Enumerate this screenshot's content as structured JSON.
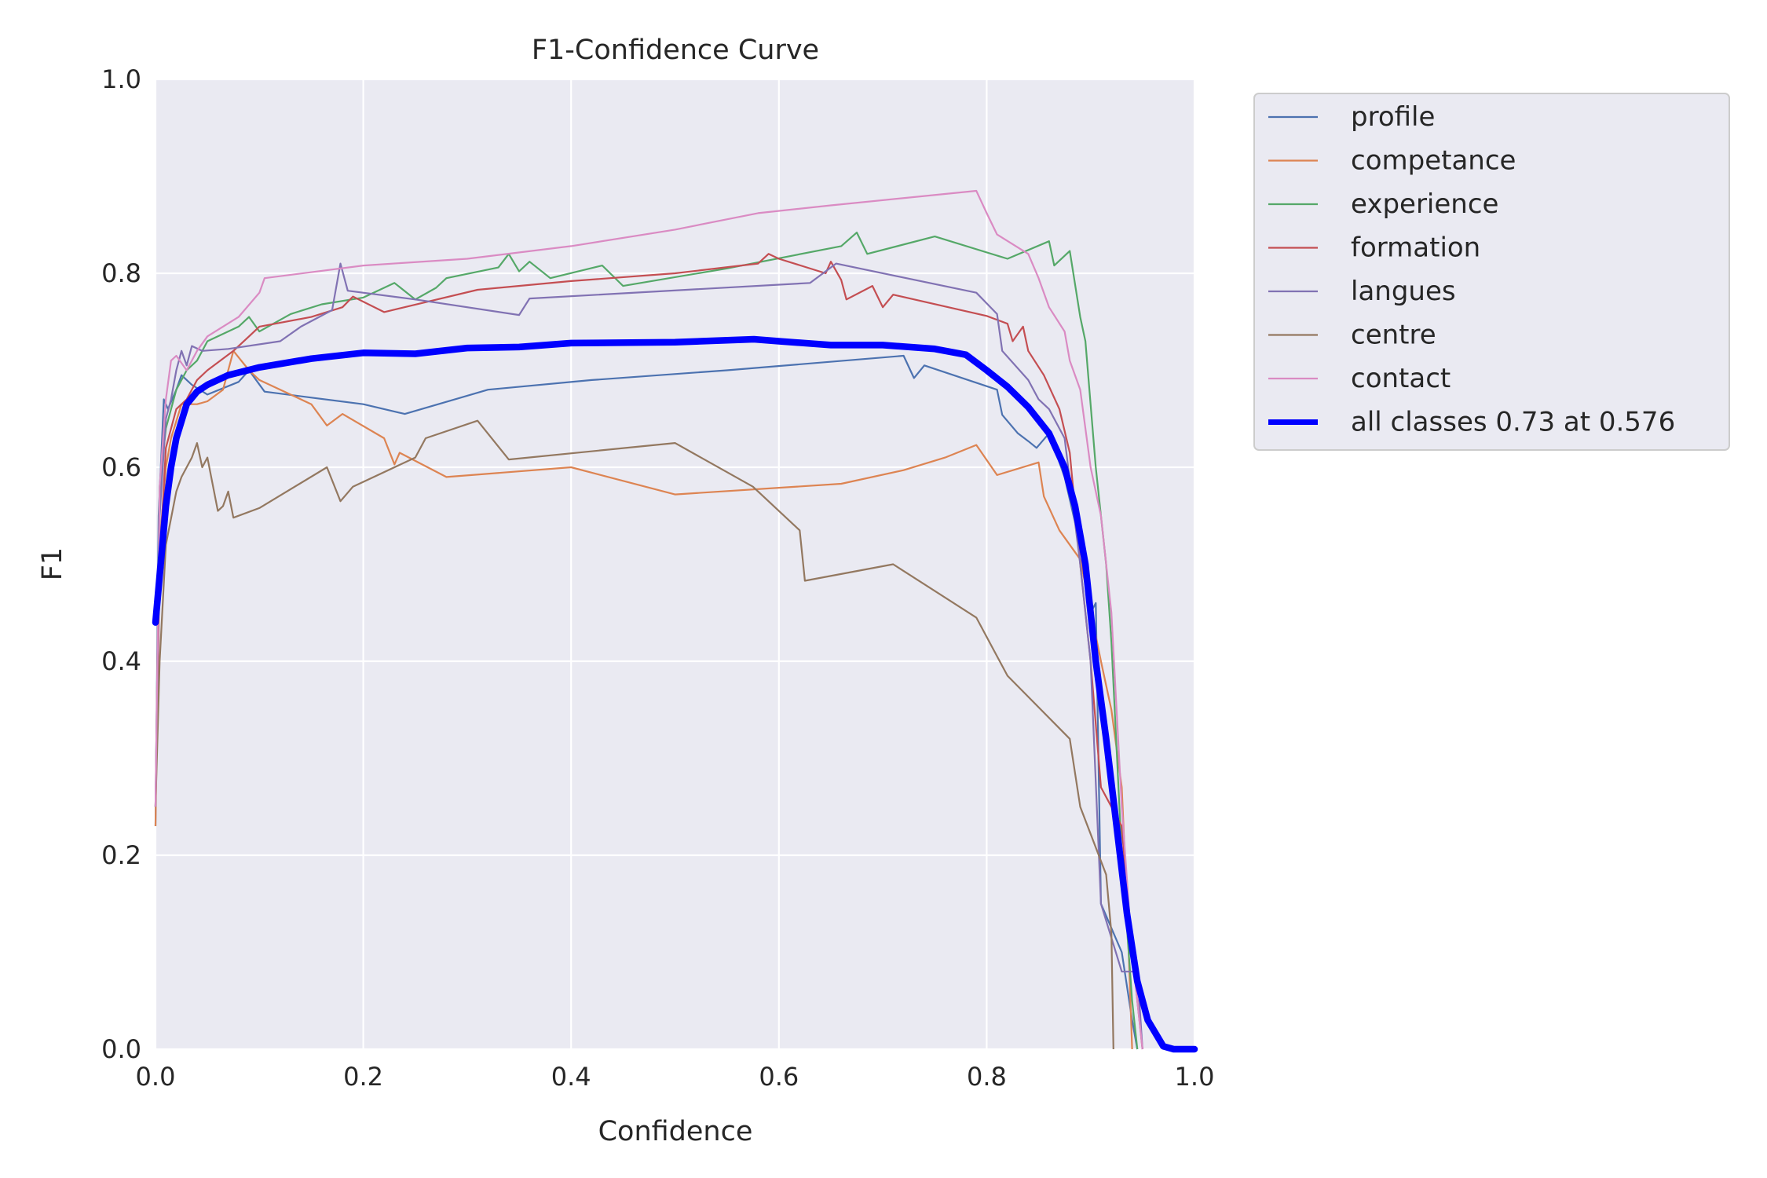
{
  "chart_data": {
    "type": "line",
    "title": "F1-Confidence Curve",
    "xlabel": "Confidence",
    "ylabel": "F1",
    "xlim": [
      0,
      1
    ],
    "ylim": [
      0,
      1
    ],
    "xticks": [
      "0.0",
      "0.2",
      "0.4",
      "0.6",
      "0.8",
      "1.0"
    ],
    "yticks": [
      "0.0",
      "0.2",
      "0.4",
      "0.6",
      "0.8",
      "1.0"
    ],
    "grid": true,
    "legend_position": "outside-upper-right",
    "background": "#eaeaf2",
    "series": [
      {
        "name": "profile",
        "color": "#4c72b0",
        "points": [
          [
            0,
            0.23
          ],
          [
            0.003,
            0.55
          ],
          [
            0.008,
            0.67
          ],
          [
            0.012,
            0.66
          ],
          [
            0.02,
            0.68
          ],
          [
            0.025,
            0.695
          ],
          [
            0.035,
            0.685
          ],
          [
            0.05,
            0.675
          ],
          [
            0.08,
            0.688
          ],
          [
            0.09,
            0.7
          ],
          [
            0.105,
            0.678
          ],
          [
            0.2,
            0.665
          ],
          [
            0.24,
            0.655
          ],
          [
            0.32,
            0.68
          ],
          [
            0.42,
            0.69
          ],
          [
            0.55,
            0.7
          ],
          [
            0.72,
            0.715
          ],
          [
            0.73,
            0.692
          ],
          [
            0.74,
            0.705
          ],
          [
            0.81,
            0.68
          ],
          [
            0.815,
            0.654
          ],
          [
            0.83,
            0.635
          ],
          [
            0.84,
            0.627
          ],
          [
            0.848,
            0.62
          ],
          [
            0.86,
            0.635
          ],
          [
            0.875,
            0.59
          ],
          [
            0.89,
            0.52
          ],
          [
            0.9,
            0.45
          ],
          [
            0.905,
            0.46
          ],
          [
            0.91,
            0.15
          ],
          [
            0.93,
            0.1
          ],
          [
            0.94,
            0.03
          ],
          [
            0.945,
            0
          ]
        ]
      },
      {
        "name": "competance",
        "color": "#dd8452",
        "points": [
          [
            0,
            0.23
          ],
          [
            0.004,
            0.52
          ],
          [
            0.01,
            0.6
          ],
          [
            0.015,
            0.63
          ],
          [
            0.025,
            0.665
          ],
          [
            0.04,
            0.665
          ],
          [
            0.05,
            0.668
          ],
          [
            0.065,
            0.68
          ],
          [
            0.075,
            0.72
          ],
          [
            0.09,
            0.7
          ],
          [
            0.1,
            0.69
          ],
          [
            0.15,
            0.665
          ],
          [
            0.165,
            0.643
          ],
          [
            0.18,
            0.655
          ],
          [
            0.22,
            0.63
          ],
          [
            0.23,
            0.603
          ],
          [
            0.235,
            0.615
          ],
          [
            0.28,
            0.59
          ],
          [
            0.4,
            0.6
          ],
          [
            0.5,
            0.572
          ],
          [
            0.66,
            0.583
          ],
          [
            0.72,
            0.597
          ],
          [
            0.76,
            0.61
          ],
          [
            0.79,
            0.623
          ],
          [
            0.81,
            0.592
          ],
          [
            0.85,
            0.605
          ],
          [
            0.855,
            0.57
          ],
          [
            0.87,
            0.535
          ],
          [
            0.89,
            0.505
          ],
          [
            0.91,
            0.4
          ],
          [
            0.92,
            0.35
          ],
          [
            0.93,
            0.27
          ],
          [
            0.935,
            0.15
          ],
          [
            0.94,
            0
          ]
        ]
      },
      {
        "name": "experience",
        "color": "#55a868",
        "points": [
          [
            0,
            0.25
          ],
          [
            0.004,
            0.58
          ],
          [
            0.01,
            0.64
          ],
          [
            0.02,
            0.68
          ],
          [
            0.03,
            0.7
          ],
          [
            0.04,
            0.71
          ],
          [
            0.05,
            0.73
          ],
          [
            0.08,
            0.745
          ],
          [
            0.09,
            0.755
          ],
          [
            0.1,
            0.74
          ],
          [
            0.13,
            0.758
          ],
          [
            0.16,
            0.768
          ],
          [
            0.2,
            0.775
          ],
          [
            0.23,
            0.79
          ],
          [
            0.25,
            0.773
          ],
          [
            0.27,
            0.785
          ],
          [
            0.28,
            0.795
          ],
          [
            0.33,
            0.806
          ],
          [
            0.34,
            0.82
          ],
          [
            0.35,
            0.802
          ],
          [
            0.36,
            0.812
          ],
          [
            0.38,
            0.795
          ],
          [
            0.43,
            0.808
          ],
          [
            0.45,
            0.787
          ],
          [
            0.55,
            0.805
          ],
          [
            0.66,
            0.828
          ],
          [
            0.675,
            0.842
          ],
          [
            0.685,
            0.82
          ],
          [
            0.75,
            0.838
          ],
          [
            0.82,
            0.815
          ],
          [
            0.86,
            0.833
          ],
          [
            0.865,
            0.808
          ],
          [
            0.88,
            0.823
          ],
          [
            0.89,
            0.755
          ],
          [
            0.895,
            0.73
          ],
          [
            0.905,
            0.6
          ],
          [
            0.915,
            0.5
          ],
          [
            0.92,
            0.42
          ],
          [
            0.93,
            0.2
          ],
          [
            0.94,
            0.05
          ],
          [
            0.945,
            0
          ]
        ]
      },
      {
        "name": "formation",
        "color": "#c44e52",
        "points": [
          [
            0,
            0.25
          ],
          [
            0.004,
            0.5
          ],
          [
            0.01,
            0.62
          ],
          [
            0.02,
            0.66
          ],
          [
            0.03,
            0.67
          ],
          [
            0.04,
            0.69
          ],
          [
            0.05,
            0.7
          ],
          [
            0.075,
            0.72
          ],
          [
            0.09,
            0.735
          ],
          [
            0.1,
            0.745
          ],
          [
            0.15,
            0.755
          ],
          [
            0.18,
            0.765
          ],
          [
            0.19,
            0.776
          ],
          [
            0.22,
            0.76
          ],
          [
            0.31,
            0.783
          ],
          [
            0.4,
            0.792
          ],
          [
            0.5,
            0.8
          ],
          [
            0.58,
            0.81
          ],
          [
            0.59,
            0.82
          ],
          [
            0.6,
            0.815
          ],
          [
            0.645,
            0.8
          ],
          [
            0.65,
            0.812
          ],
          [
            0.66,
            0.793
          ],
          [
            0.665,
            0.773
          ],
          [
            0.69,
            0.787
          ],
          [
            0.7,
            0.765
          ],
          [
            0.71,
            0.778
          ],
          [
            0.8,
            0.756
          ],
          [
            0.82,
            0.748
          ],
          [
            0.825,
            0.73
          ],
          [
            0.835,
            0.745
          ],
          [
            0.84,
            0.72
          ],
          [
            0.855,
            0.695
          ],
          [
            0.87,
            0.66
          ],
          [
            0.88,
            0.615
          ],
          [
            0.89,
            0.5
          ],
          [
            0.9,
            0.4
          ],
          [
            0.91,
            0.27
          ],
          [
            0.93,
            0.23
          ],
          [
            0.94,
            0.1
          ],
          [
            0.95,
            0
          ]
        ]
      },
      {
        "name": "langues",
        "color": "#8172b3",
        "points": [
          [
            0,
            0.25
          ],
          [
            0.004,
            0.55
          ],
          [
            0.01,
            0.65
          ],
          [
            0.015,
            0.67
          ],
          [
            0.02,
            0.7
          ],
          [
            0.025,
            0.72
          ],
          [
            0.03,
            0.705
          ],
          [
            0.035,
            0.725
          ],
          [
            0.045,
            0.72
          ],
          [
            0.07,
            0.722
          ],
          [
            0.12,
            0.73
          ],
          [
            0.14,
            0.745
          ],
          [
            0.17,
            0.762
          ],
          [
            0.178,
            0.81
          ],
          [
            0.185,
            0.782
          ],
          [
            0.25,
            0.773
          ],
          [
            0.35,
            0.757
          ],
          [
            0.36,
            0.774
          ],
          [
            0.63,
            0.79
          ],
          [
            0.655,
            0.81
          ],
          [
            0.79,
            0.78
          ],
          [
            0.81,
            0.758
          ],
          [
            0.815,
            0.72
          ],
          [
            0.84,
            0.69
          ],
          [
            0.85,
            0.67
          ],
          [
            0.86,
            0.66
          ],
          [
            0.875,
            0.63
          ],
          [
            0.89,
            0.5
          ],
          [
            0.9,
            0.4
          ],
          [
            0.91,
            0.15
          ],
          [
            0.93,
            0.08
          ],
          [
            0.945,
            0.08
          ],
          [
            0.95,
            0
          ]
        ]
      },
      {
        "name": "centre",
        "color": "#937860",
        "points": [
          [
            0,
            0.25
          ],
          [
            0.004,
            0.4
          ],
          [
            0.01,
            0.52
          ],
          [
            0.02,
            0.575
          ],
          [
            0.025,
            0.59
          ],
          [
            0.035,
            0.61
          ],
          [
            0.04,
            0.625
          ],
          [
            0.045,
            0.6
          ],
          [
            0.05,
            0.61
          ],
          [
            0.06,
            0.555
          ],
          [
            0.065,
            0.56
          ],
          [
            0.07,
            0.575
          ],
          [
            0.075,
            0.548
          ],
          [
            0.1,
            0.558
          ],
          [
            0.165,
            0.6
          ],
          [
            0.178,
            0.565
          ],
          [
            0.19,
            0.58
          ],
          [
            0.25,
            0.61
          ],
          [
            0.26,
            0.63
          ],
          [
            0.31,
            0.648
          ],
          [
            0.34,
            0.608
          ],
          [
            0.5,
            0.625
          ],
          [
            0.575,
            0.58
          ],
          [
            0.62,
            0.535
          ],
          [
            0.625,
            0.483
          ],
          [
            0.71,
            0.5
          ],
          [
            0.79,
            0.445
          ],
          [
            0.82,
            0.385
          ],
          [
            0.88,
            0.32
          ],
          [
            0.89,
            0.25
          ],
          [
            0.915,
            0.18
          ],
          [
            0.92,
            0.12
          ],
          [
            0.922,
            0
          ]
        ]
      },
      {
        "name": "contact",
        "color": "#da8bc3",
        "points": [
          [
            0,
            0.25
          ],
          [
            0.004,
            0.58
          ],
          [
            0.01,
            0.67
          ],
          [
            0.015,
            0.71
          ],
          [
            0.02,
            0.715
          ],
          [
            0.03,
            0.7
          ],
          [
            0.04,
            0.72
          ],
          [
            0.05,
            0.735
          ],
          [
            0.08,
            0.755
          ],
          [
            0.1,
            0.78
          ],
          [
            0.105,
            0.795
          ],
          [
            0.2,
            0.808
          ],
          [
            0.3,
            0.815
          ],
          [
            0.4,
            0.828
          ],
          [
            0.5,
            0.845
          ],
          [
            0.58,
            0.862
          ],
          [
            0.65,
            0.87
          ],
          [
            0.79,
            0.885
          ],
          [
            0.8,
            0.862
          ],
          [
            0.81,
            0.84
          ],
          [
            0.84,
            0.82
          ],
          [
            0.85,
            0.795
          ],
          [
            0.86,
            0.765
          ],
          [
            0.875,
            0.74
          ],
          [
            0.88,
            0.71
          ],
          [
            0.89,
            0.68
          ],
          [
            0.9,
            0.6
          ],
          [
            0.91,
            0.55
          ],
          [
            0.92,
            0.45
          ],
          [
            0.93,
            0.25
          ],
          [
            0.94,
            0.1
          ],
          [
            0.95,
            0
          ]
        ]
      }
    ],
    "summary_series": {
      "name": "all classes 0.73 at 0.576",
      "color": "#0000ff",
      "points": [
        [
          0,
          0.44
        ],
        [
          0.005,
          0.5
        ],
        [
          0.01,
          0.56
        ],
        [
          0.015,
          0.6
        ],
        [
          0.02,
          0.63
        ],
        [
          0.03,
          0.665
        ],
        [
          0.04,
          0.678
        ],
        [
          0.05,
          0.685
        ],
        [
          0.07,
          0.695
        ],
        [
          0.1,
          0.703
        ],
        [
          0.15,
          0.712
        ],
        [
          0.2,
          0.718
        ],
        [
          0.25,
          0.717
        ],
        [
          0.3,
          0.723
        ],
        [
          0.35,
          0.724
        ],
        [
          0.4,
          0.728
        ],
        [
          0.5,
          0.729
        ],
        [
          0.576,
          0.732
        ],
        [
          0.6,
          0.73
        ],
        [
          0.65,
          0.726
        ],
        [
          0.7,
          0.726
        ],
        [
          0.75,
          0.722
        ],
        [
          0.78,
          0.716
        ],
        [
          0.8,
          0.7
        ],
        [
          0.82,
          0.683
        ],
        [
          0.84,
          0.662
        ],
        [
          0.86,
          0.635
        ],
        [
          0.875,
          0.6
        ],
        [
          0.885,
          0.56
        ],
        [
          0.895,
          0.5
        ],
        [
          0.905,
          0.4
        ],
        [
          0.915,
          0.32
        ],
        [
          0.925,
          0.23
        ],
        [
          0.935,
          0.14
        ],
        [
          0.945,
          0.07
        ],
        [
          0.955,
          0.03
        ],
        [
          0.97,
          0.003
        ],
        [
          0.98,
          0
        ],
        [
          1.0,
          0
        ]
      ]
    }
  }
}
